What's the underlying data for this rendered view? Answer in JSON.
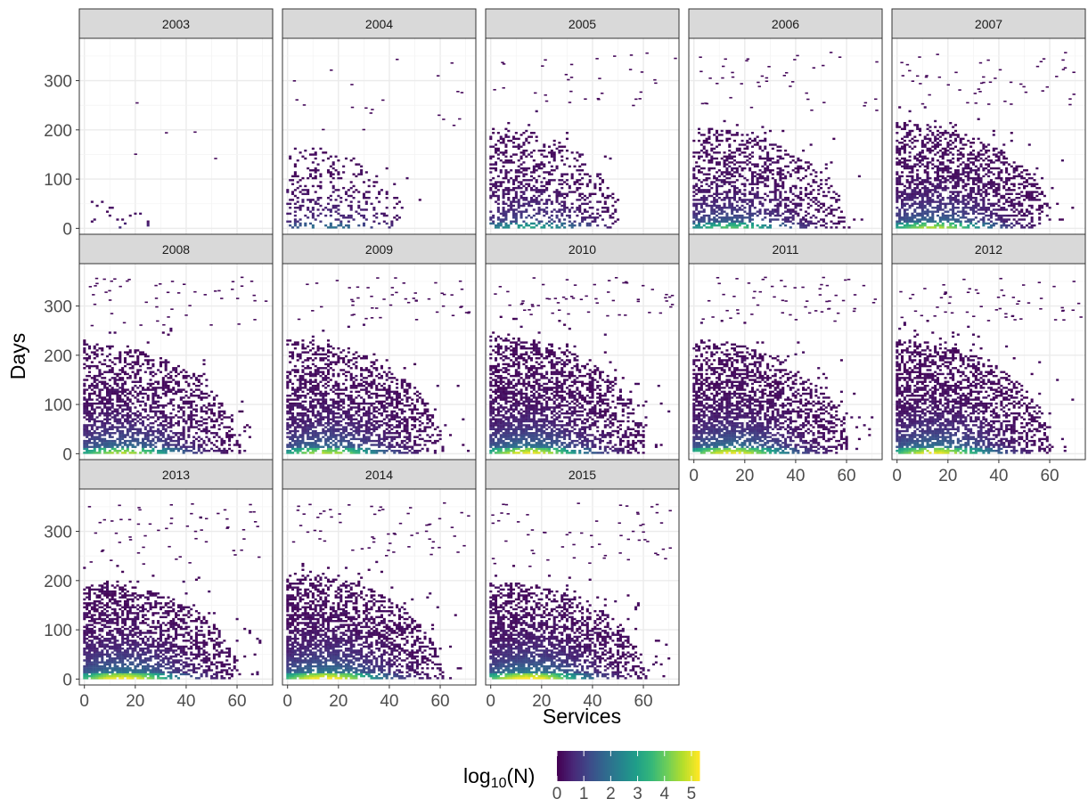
{
  "chart_data": {
    "type": "heatmap",
    "title": "",
    "xlabel": "Services",
    "ylabel": "Days",
    "xlim": [
      -2,
      74
    ],
    "ylim": [
      -12,
      386
    ],
    "x_ticks": [
      0,
      20,
      40,
      60
    ],
    "y_ticks": [
      0,
      100,
      200,
      300
    ],
    "grid": true,
    "facet_by": "year",
    "facets": [
      "2003",
      "2004",
      "2005",
      "2006",
      "2007",
      "2008",
      "2009",
      "2010",
      "2011",
      "2012",
      "2013",
      "2014",
      "2015"
    ],
    "facet_density": [
      0.08,
      0.35,
      0.55,
      0.7,
      0.85,
      0.85,
      0.85,
      0.95,
      0.95,
      0.95,
      0.98,
      1.0,
      1.0
    ],
    "facet_max_days": [
      80,
      190,
      240,
      240,
      250,
      260,
      270,
      280,
      270,
      270,
      230,
      250,
      230
    ],
    "facet_max_services": [
      30,
      55,
      60,
      70,
      72,
      72,
      72,
      72,
      72,
      72,
      72,
      72,
      72
    ],
    "legend": {
      "title_main": "log",
      "title_sub": "10",
      "title_rest": "(N)",
      "ticks": [
        0,
        1,
        2,
        3,
        4,
        5
      ],
      "min": 0,
      "max": 5.3,
      "position": "bottom",
      "colors": [
        "#440154",
        "#482878",
        "#3e4a89",
        "#31688e",
        "#26828e",
        "#1f9e89",
        "#35b779",
        "#6ece58",
        "#b5de2b",
        "#fde725"
      ]
    }
  }
}
